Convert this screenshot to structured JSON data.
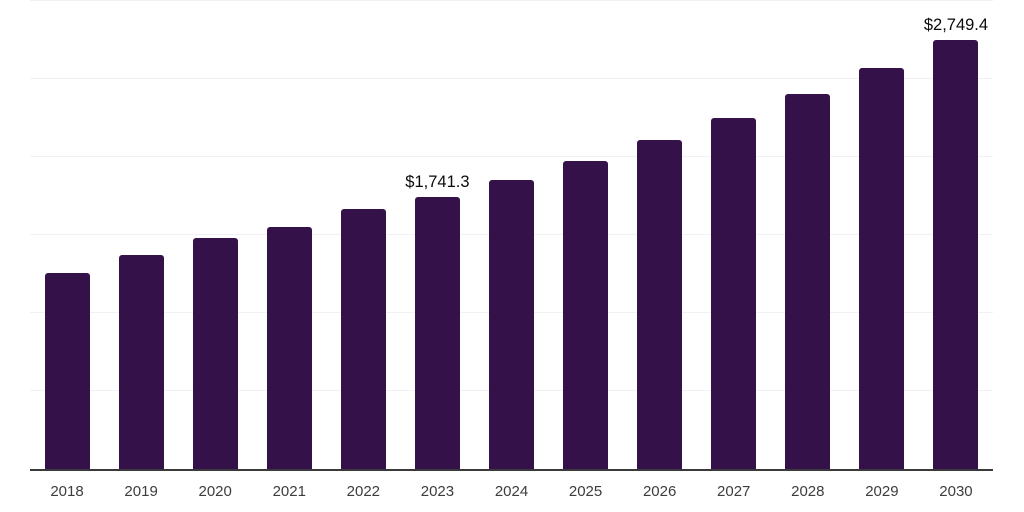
{
  "chart_data": {
    "type": "bar",
    "title": "",
    "xlabel": "",
    "ylabel": "",
    "categories": [
      "2018",
      "2019",
      "2020",
      "2021",
      "2022",
      "2023",
      "2024",
      "2025",
      "2026",
      "2027",
      "2028",
      "2029",
      "2030"
    ],
    "values": [
      1259,
      1375,
      1478,
      1554,
      1664,
      1741.3,
      1850,
      1972,
      2107,
      2249,
      2403,
      2570,
      2749.4
    ],
    "value_labels": {
      "2023": "$1,741.3",
      "2030": "$2,749.4"
    },
    "ylim": [
      0,
      3000
    ],
    "gridline_step": 500,
    "grid": "horizontal",
    "legend": "none",
    "colors": {
      "bar": "#351149",
      "gridline": "#f1f1f4",
      "axis_line": "#3a3a3a",
      "tick_label": "#3d3d3d",
      "data_label": "#0a0a0a",
      "background": "#ffffff"
    }
  }
}
